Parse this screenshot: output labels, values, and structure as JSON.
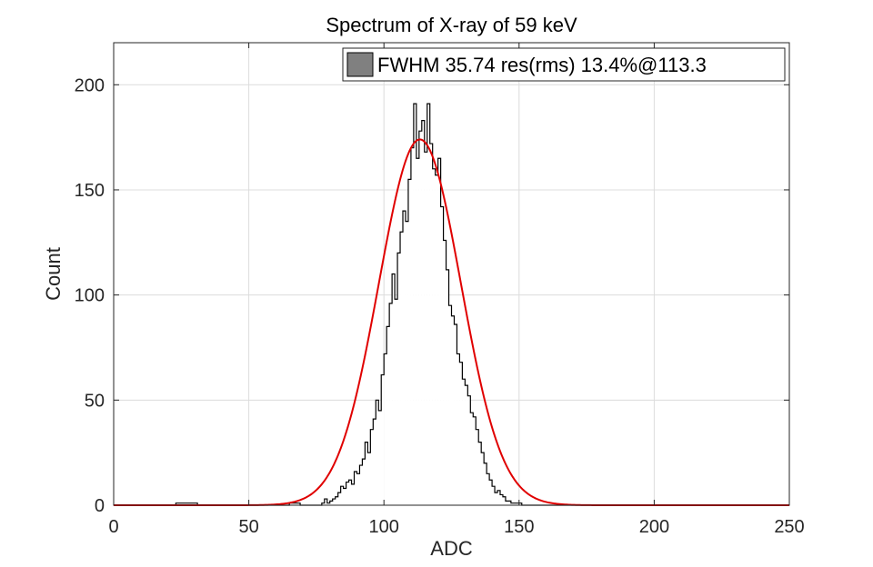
{
  "chart_data": {
    "type": "bar",
    "title": "Spectrum of X-ray of 59 keV",
    "xlabel": "ADC",
    "ylabel": "Count",
    "xlim": [
      0,
      250
    ],
    "ylim": [
      0,
      200
    ],
    "ylim_display_max": 220,
    "xticks": [
      0,
      50,
      100,
      150,
      200,
      250
    ],
    "yticks": [
      0,
      50,
      100,
      150,
      200
    ],
    "grid": true,
    "legend_position": "top-right",
    "bin_width": 1,
    "histogram": {
      "name": "FWHM 35.74 res(rms) 13.4%@113.3",
      "face_color": "#808080",
      "edge_color": "#000000",
      "bins_start": 0,
      "bins_end": 236,
      "default_count": 0,
      "counts": {
        "23": 1,
        "24": 1,
        "25": 1,
        "26": 1,
        "27": 1,
        "28": 1,
        "29": 1,
        "30": 1,
        "65": 1,
        "66": 1,
        "67": 1,
        "68": 1,
        "77": 1,
        "78": 3,
        "79": 1,
        "80": 2,
        "81": 3,
        "82": 4,
        "83": 6,
        "84": 9,
        "85": 8,
        "86": 11,
        "87": 12,
        "88": 10,
        "89": 16,
        "90": 15,
        "91": 19,
        "92": 22,
        "93": 30,
        "94": 25,
        "95": 36,
        "96": 41,
        "97": 50,
        "98": 45,
        "99": 62,
        "100": 72,
        "101": 85,
        "102": 96,
        "103": 110,
        "104": 98,
        "105": 120,
        "106": 130,
        "107": 140,
        "108": 135,
        "109": 155,
        "110": 170,
        "111": 191,
        "112": 165,
        "113": 178,
        "114": 183,
        "115": 168,
        "116": 191,
        "117": 172,
        "118": 160,
        "119": 157,
        "120": 165,
        "121": 142,
        "122": 126,
        "123": 112,
        "124": 95,
        "125": 90,
        "126": 86,
        "127": 72,
        "128": 68,
        "129": 60,
        "130": 57,
        "131": 52,
        "132": 44,
        "133": 42,
        "134": 36,
        "135": 30,
        "136": 25,
        "137": 20,
        "138": 15,
        "139": 12,
        "140": 9,
        "141": 6,
        "142": 7,
        "143": 5,
        "144": 4,
        "145": 2,
        "146": 2,
        "147": 1,
        "148": 1,
        "149": 1,
        "150": 1
      }
    },
    "fit": {
      "type": "gaussian",
      "color": "#e00000",
      "mean": 113.3,
      "sigma": 15.18,
      "amplitude": 174,
      "x_range": [
        0,
        250
      ]
    }
  }
}
